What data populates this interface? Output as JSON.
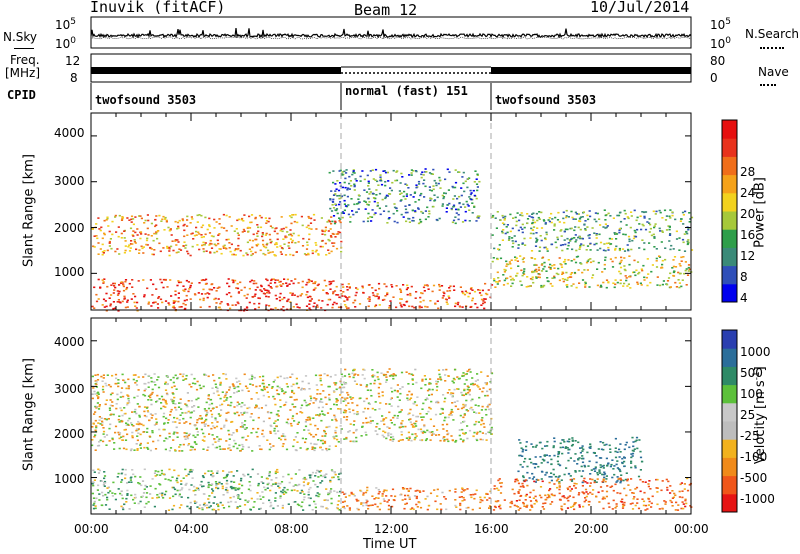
{
  "header": {
    "station": "Inuvik (fitACF)",
    "beam": "Beam 12",
    "date": "10/Jul/2014"
  },
  "sky_panel": {
    "left_label": "N.Sky",
    "right_label": "N.Search",
    "left_ticks": [
      "10^5",
      "10^0"
    ],
    "right_ticks": [
      "10^5",
      "10^0"
    ]
  },
  "freq_panel": {
    "left_label_1": "Freq.",
    "left_label_2": "[MHz]",
    "right_label": "Nave",
    "left_ticks": [
      "12",
      "8"
    ],
    "right_ticks": [
      "80",
      "0"
    ]
  },
  "cpid_panel": {
    "label": "CPID",
    "segments": [
      {
        "name": "twofsound 3503",
        "start_h": 0,
        "end_h": 10
      },
      {
        "name": "normal (fast) 151",
        "start_h": 10,
        "end_h": 16
      },
      {
        "name": "twofsound 3503",
        "start_h": 16,
        "end_h": 24
      }
    ]
  },
  "power_panel": {
    "ylabel": "Slant Range [km]",
    "yticks": [
      "4000",
      "3000",
      "2000",
      "1000"
    ],
    "colorbar_label": "Power [dB]",
    "colorbar_ticks": [
      "28",
      "24",
      "20",
      "16",
      "12",
      "8",
      "4"
    ]
  },
  "velocity_panel": {
    "ylabel": "Slant Range [km]",
    "yticks": [
      "4000",
      "3000",
      "2000",
      "1000"
    ],
    "colorbar_label": "Velocity [m s",
    "colorbar_label_sup": "-1",
    "colorbar_label_end": "]",
    "colorbar_ticks": [
      "1000",
      "500",
      "100",
      "25",
      "-25",
      "-100",
      "-500",
      "-1000"
    ]
  },
  "x_axis": {
    "label": "Time UT",
    "ticks": [
      "00:00",
      "04:00",
      "08:00",
      "12:00",
      "16:00",
      "20:00",
      "00:00"
    ]
  },
  "colors": {
    "power_scale": [
      "#0000ee",
      "#2f4fb8",
      "#3a8a78",
      "#2e9e4a",
      "#a6c83a",
      "#f2d21e",
      "#f5a21a",
      "#f06e1a",
      "#e8321c",
      "#e60f0f"
    ],
    "velocity_scale": [
      "#2a3fb0",
      "#2b6e9a",
      "#2e8a66",
      "#5cc03a",
      "#c8c8c8",
      "#bdbdbd",
      "#f2b21e",
      "#f08a1a",
      "#f0561a",
      "#e61414"
    ]
  },
  "chart_data": [
    {
      "type": "heatmap",
      "title": "Beam 12",
      "xlabel": "Time UT",
      "ylabel": "Slant Range [km]",
      "x_range_hours": [
        0,
        24
      ],
      "y_range_km": [
        200,
        4500
      ],
      "colorbar": "Power [dB]",
      "colorbar_range": [
        0,
        30
      ],
      "scatter_regions": [
        {
          "t0": 0,
          "t1": 10,
          "r0": 200,
          "r1": 900,
          "value_db": 26
        },
        {
          "t0": 0,
          "t1": 10,
          "r0": 1400,
          "r1": 2300,
          "value_db": 20
        },
        {
          "t0": 10,
          "t1": 16,
          "r0": 250,
          "r1": 800,
          "value_db": 24
        },
        {
          "t0": 9.5,
          "t1": 15.5,
          "r0": 2100,
          "r1": 3300,
          "value_db": 8
        },
        {
          "t0": 16,
          "t1": 24,
          "r0": 700,
          "r1": 1400,
          "value_db": 16
        },
        {
          "t0": 16,
          "t1": 24,
          "r0": 1500,
          "r1": 2400,
          "value_db": 10
        }
      ]
    },
    {
      "type": "heatmap",
      "title": "Beam 12",
      "xlabel": "Time UT",
      "ylabel": "Slant Range [km]",
      "x_range_hours": [
        0,
        24
      ],
      "y_range_km": [
        200,
        4500
      ],
      "colorbar": "Velocity [m s-1]",
      "colorbar_range": [
        -1000,
        1000
      ],
      "scatter_regions": [
        {
          "t0": 0,
          "t1": 10,
          "r0": 1600,
          "r1": 3300,
          "value_ms": 0
        },
        {
          "t0": 0,
          "t1": 10,
          "r0": 300,
          "r1": 1200,
          "value_ms": 150
        },
        {
          "t0": 10,
          "t1": 16,
          "r0": 1800,
          "r1": 3400,
          "value_ms": 0
        },
        {
          "t0": 10,
          "t1": 16,
          "r0": 300,
          "r1": 800,
          "value_ms": -200
        },
        {
          "t0": 17,
          "t1": 22,
          "r0": 900,
          "r1": 1900,
          "value_ms": 500
        },
        {
          "t0": 16,
          "t1": 24,
          "r0": 300,
          "r1": 1000,
          "value_ms": -300
        }
      ]
    }
  ]
}
